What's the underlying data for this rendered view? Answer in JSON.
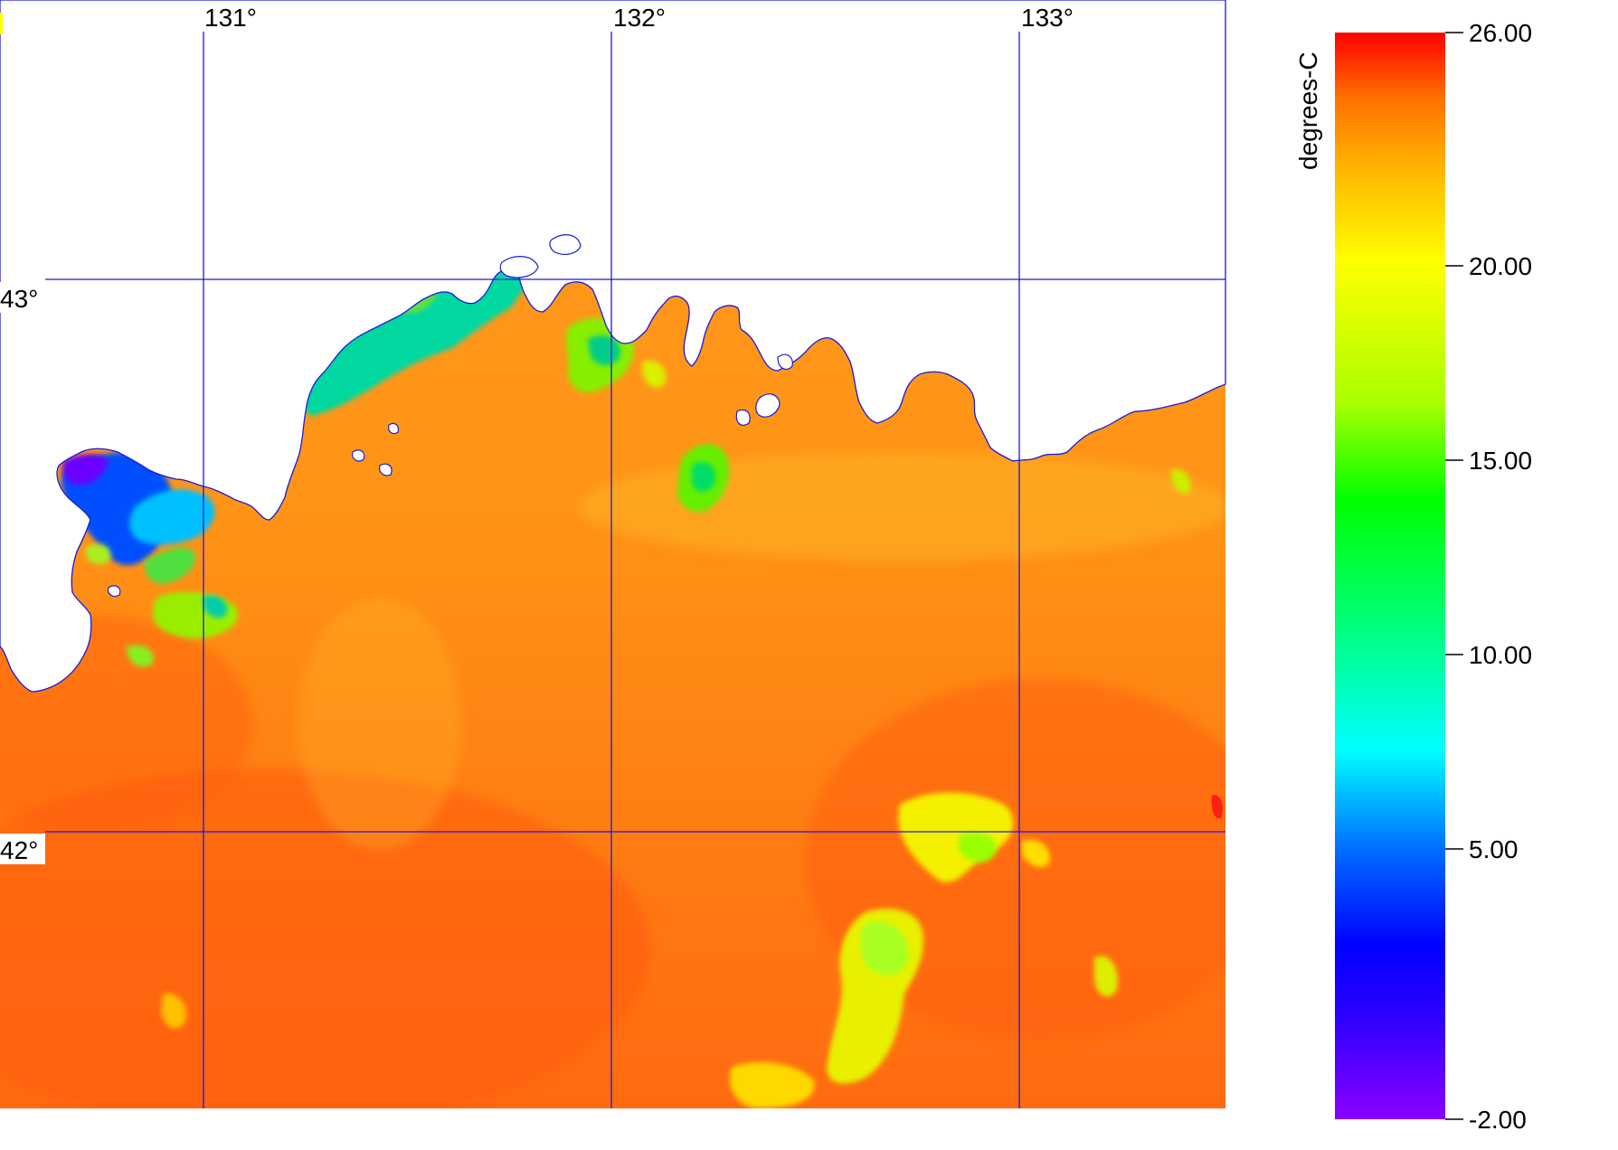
{
  "map": {
    "lon_labels": [
      "131°",
      "132°",
      "133°"
    ],
    "lat_labels": [
      "43°",
      "42°"
    ],
    "grid_color": "#1a1adc",
    "coast_color": "#1a1adc"
  },
  "colorbar": {
    "unit_label": "degrees-C",
    "ticks": [
      "26.00",
      "20.00",
      "15.00",
      "10.00",
      "5.00",
      "-2.00"
    ],
    "min": -2,
    "max": 26,
    "stops": [
      "#8a00ff",
      "#0000ff",
      "#00a0ff",
      "#00ffff",
      "#00ff66",
      "#00ff00",
      "#aaff00",
      "#ffff00",
      "#ffc000",
      "#ff8000",
      "#ff0000"
    ]
  }
}
